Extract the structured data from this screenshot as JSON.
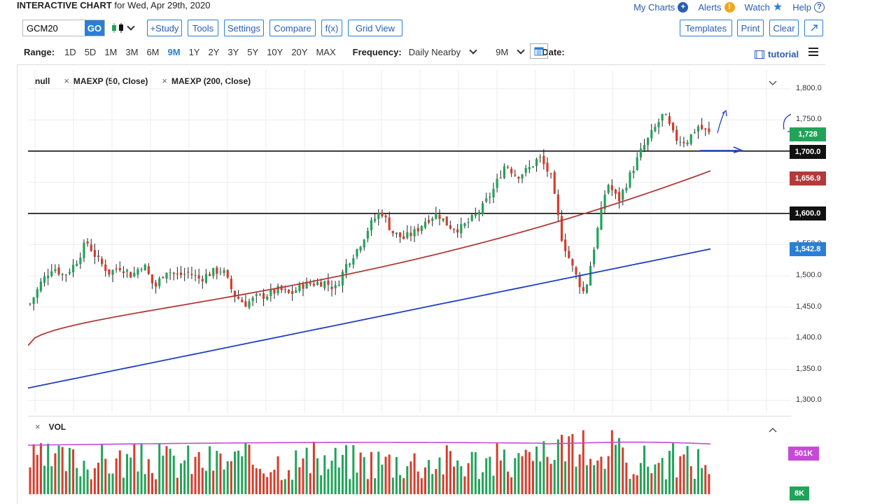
{
  "header": {
    "title_bold": "INTERACTIVE CHART",
    "title_rest": " for Wed, Apr 29th, 2020"
  },
  "toplinks": [
    {
      "label": "My Charts",
      "icon": "plus-circle-icon"
    },
    {
      "label": "Alerts",
      "icon": "exclamation-icon"
    },
    {
      "label": "Watch",
      "icon": "star-icon"
    },
    {
      "label": "Help",
      "icon": "question-icon"
    }
  ],
  "symbol": {
    "value": "GCM20",
    "go_label": "GO"
  },
  "toolbar": {
    "study": "+Study",
    "tools": "Tools",
    "settings": "Settings",
    "compare": "Compare",
    "fx": "f(x)",
    "grid": "Grid View",
    "templates": "Templates",
    "print": "Print",
    "clear": "Clear"
  },
  "range": {
    "label": "Range:",
    "options": [
      "1D",
      "5D",
      "1M",
      "3M",
      "6M",
      "9M",
      "1Y",
      "2Y",
      "3Y",
      "5Y",
      "10Y",
      "20Y",
      "MAX"
    ],
    "active": "9M"
  },
  "frequency": {
    "label": "Frequency:",
    "value": "Daily Nearby",
    "period": "9M"
  },
  "date": {
    "label": "Date:"
  },
  "tutorial": "tutorial",
  "legend": {
    "main": "null",
    "ma1": "MAEXP (50, Close)",
    "ma2": "MAEXP (200, Close)"
  },
  "volume": {
    "label": "VOL",
    "avg_label": "501K",
    "last_label": "8K"
  },
  "colors": {
    "accent": "#2a7fd4",
    "up": "#21a35a",
    "down": "#d73c2c",
    "ma50": "#b23a3a",
    "ma200": "#1f3fc4",
    "vol_ma": "#c64ad6"
  },
  "price_labels": {
    "current": "1,728",
    "line1": "1,700.0",
    "ma50": "1,656.9",
    "line2": "1,600.0",
    "ma200": "1,542.8"
  },
  "chart_data": {
    "type": "candlestick",
    "y_ticks": [
      "1,800.0",
      "1,750.0",
      "1,700.0",
      "1,650.0",
      "1,600.0",
      "1,550.0",
      "1,500.0",
      "1,450.0",
      "1,400.0",
      "1,350.0",
      "1,300.0"
    ],
    "y_range": [
      1280,
      1830
    ],
    "horizontal_lines": [
      1700,
      1600
    ],
    "ma50": {
      "start": 1388,
      "end": 1657
    },
    "ma200": {
      "start": 1320,
      "end": 1543
    },
    "close_approx": [
      1455,
      1490,
      1515,
      1500,
      1520,
      1555,
      1525,
      1505,
      1515,
      1500,
      1520,
      1480,
      1510,
      1500,
      1505,
      1495,
      1505,
      1510,
      1470,
      1455,
      1465,
      1470,
      1478,
      1470,
      1485,
      1488,
      1490,
      1480,
      1520,
      1545,
      1580,
      1605,
      1570,
      1560,
      1570,
      1590,
      1600,
      1580,
      1575,
      1590,
      1610,
      1640,
      1680,
      1660,
      1670,
      1690,
      1660,
      1560,
      1510,
      1470,
      1560,
      1650,
      1620,
      1660,
      1700,
      1730,
      1760,
      1720,
      1715,
      1740,
      1728
    ]
  }
}
